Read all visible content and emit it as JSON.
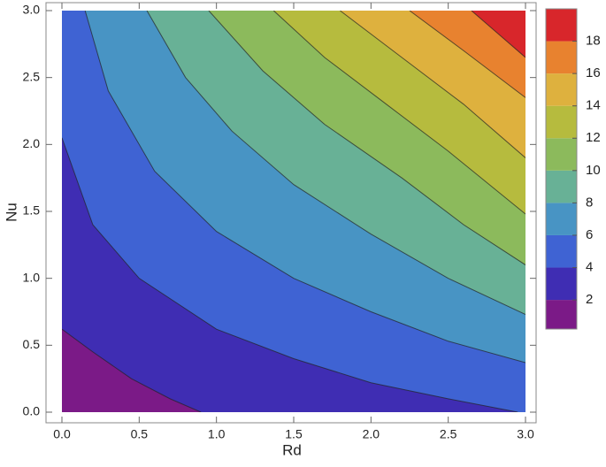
{
  "chart_data": {
    "type": "contour",
    "xlabel": "Rd",
    "ylabel": "Nu",
    "xlim": [
      0,
      3
    ],
    "ylim": [
      0,
      3
    ],
    "xticks": [
      {
        "value": 0,
        "label": "0.0"
      },
      0.5,
      {
        "value": 1,
        "label": "1.0"
      },
      1.5,
      {
        "value": 2,
        "label": "2.0"
      },
      2.5,
      {
        "value": 3,
        "label": "3.0"
      }
    ],
    "yticks": [
      {
        "value": 0,
        "label": "0.0"
      },
      0.5,
      {
        "value": 1,
        "label": "1.0"
      },
      1.5,
      {
        "value": 2,
        "label": "2.0"
      },
      2.5,
      {
        "value": 3,
        "label": "3.0"
      }
    ],
    "levels": [
      0,
      2,
      4,
      6,
      8,
      10,
      12,
      14,
      16,
      18,
      20
    ],
    "colors": [
      "#7b1a87",
      "#3f2db3",
      "#3f63d3",
      "#4894c4",
      "#68b196",
      "#8cba5c",
      "#b6bb3e",
      "#deb13e",
      "#e8822f",
      "#d8262b"
    ],
    "clim": [
      0.2,
      20
    ],
    "cticks": [
      2,
      4,
      6,
      8,
      10,
      12,
      14,
      16,
      18
    ],
    "contours": [
      {
        "x": [
          0,
          0.2,
          0.45,
          0.7,
          0.9
        ],
        "y": [
          0.62,
          0.45,
          0.25,
          0.1,
          0
        ]
      },
      {
        "x": [
          0,
          0.2,
          0.5,
          1,
          1.5,
          2,
          2.5,
          2.95
        ],
        "y": [
          2.05,
          1.4,
          1.0,
          0.62,
          0.4,
          0.22,
          0.1,
          0
        ]
      },
      {
        "x": [
          0.15,
          0.3,
          0.6,
          1,
          1.5,
          2,
          2.5,
          3
        ],
        "y": [
          3,
          2.4,
          1.8,
          1.35,
          1.0,
          0.75,
          0.53,
          0.37
        ]
      },
      {
        "x": [
          0.55,
          0.8,
          1.1,
          1.5,
          2,
          2.5,
          3
        ],
        "y": [
          3,
          2.5,
          2.1,
          1.7,
          1.33,
          1.0,
          0.73
        ]
      },
      {
        "x": [
          0.95,
          1.3,
          1.7,
          2.2,
          2.6,
          3
        ],
        "y": [
          3,
          2.55,
          2.15,
          1.75,
          1.4,
          1.1
        ]
      },
      {
        "x": [
          1.37,
          1.7,
          2.1,
          2.5,
          3
        ],
        "y": [
          3,
          2.65,
          2.3,
          1.95,
          1.48
        ]
      },
      {
        "x": [
          1.8,
          2.2,
          2.6,
          3
        ],
        "y": [
          3,
          2.65,
          2.3,
          1.9
        ]
      },
      {
        "x": [
          2.25,
          2.6,
          3
        ],
        "y": [
          3,
          2.7,
          2.35
        ]
      },
      {
        "x": [
          2.65,
          2.85,
          3
        ],
        "y": [
          3,
          2.8,
          2.65
        ]
      }
    ]
  }
}
